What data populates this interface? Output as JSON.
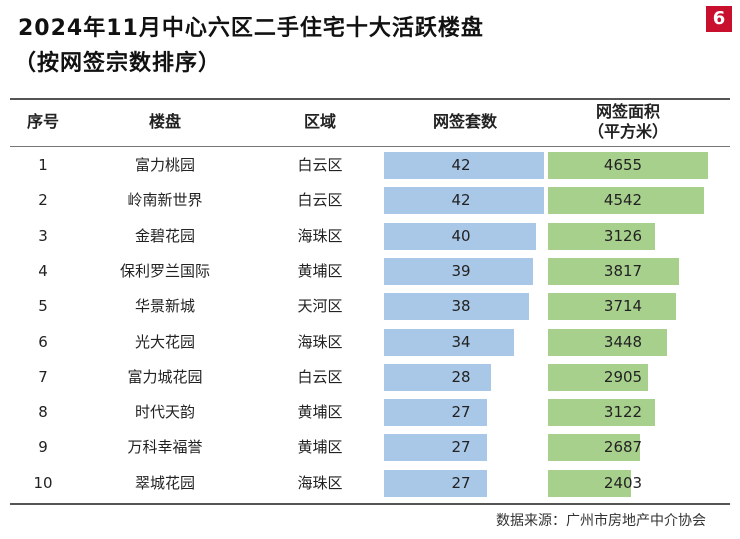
{
  "page_number": "6",
  "title": "2024年11月中心六区二手住宅十大活跃楼盘",
  "subtitle": "（按网签宗数排序）",
  "headers": {
    "rank": "序号",
    "estate": "楼盘",
    "district": "区域",
    "sign_count": "网签套数",
    "sign_area_line1": "网签面积",
    "sign_area_line2": "（平方米）"
  },
  "source": "数据来源：广州市房地产中介协会",
  "colors": {
    "count_bar": "#a9c8e8",
    "area_bar": "#a8d08d",
    "page_badge": "#c8102e"
  },
  "chart_data": {
    "type": "table",
    "columns": [
      "序号",
      "楼盘",
      "区域",
      "网签套数",
      "网签面积（平方米）"
    ],
    "rows": [
      {
        "rank": "1",
        "estate": "富力桃园",
        "district": "白云区",
        "count": 42,
        "area": 4655
      },
      {
        "rank": "2",
        "estate": "岭南新世界",
        "district": "白云区",
        "count": 42,
        "area": 4542
      },
      {
        "rank": "3",
        "estate": "金碧花园",
        "district": "海珠区",
        "count": 40,
        "area": 3126
      },
      {
        "rank": "4",
        "estate": "保利罗兰国际",
        "district": "黄埔区",
        "count": 39,
        "area": 3817
      },
      {
        "rank": "5",
        "estate": "华景新城",
        "district": "天河区",
        "count": 38,
        "area": 3714
      },
      {
        "rank": "6",
        "estate": "光大花园",
        "district": "海珠区",
        "count": 34,
        "area": 3448
      },
      {
        "rank": "7",
        "estate": "富力城花园",
        "district": "白云区",
        "count": 28,
        "area": 2905
      },
      {
        "rank": "8",
        "estate": "时代天韵",
        "district": "黄埔区",
        "count": 27,
        "area": 3122
      },
      {
        "rank": "9",
        "estate": "万科幸福誉",
        "district": "黄埔区",
        "count": 27,
        "area": 2687
      },
      {
        "rank": "10",
        "estate": "翠城花园",
        "district": "海珠区",
        "count": 27,
        "area": 2403
      }
    ]
  }
}
